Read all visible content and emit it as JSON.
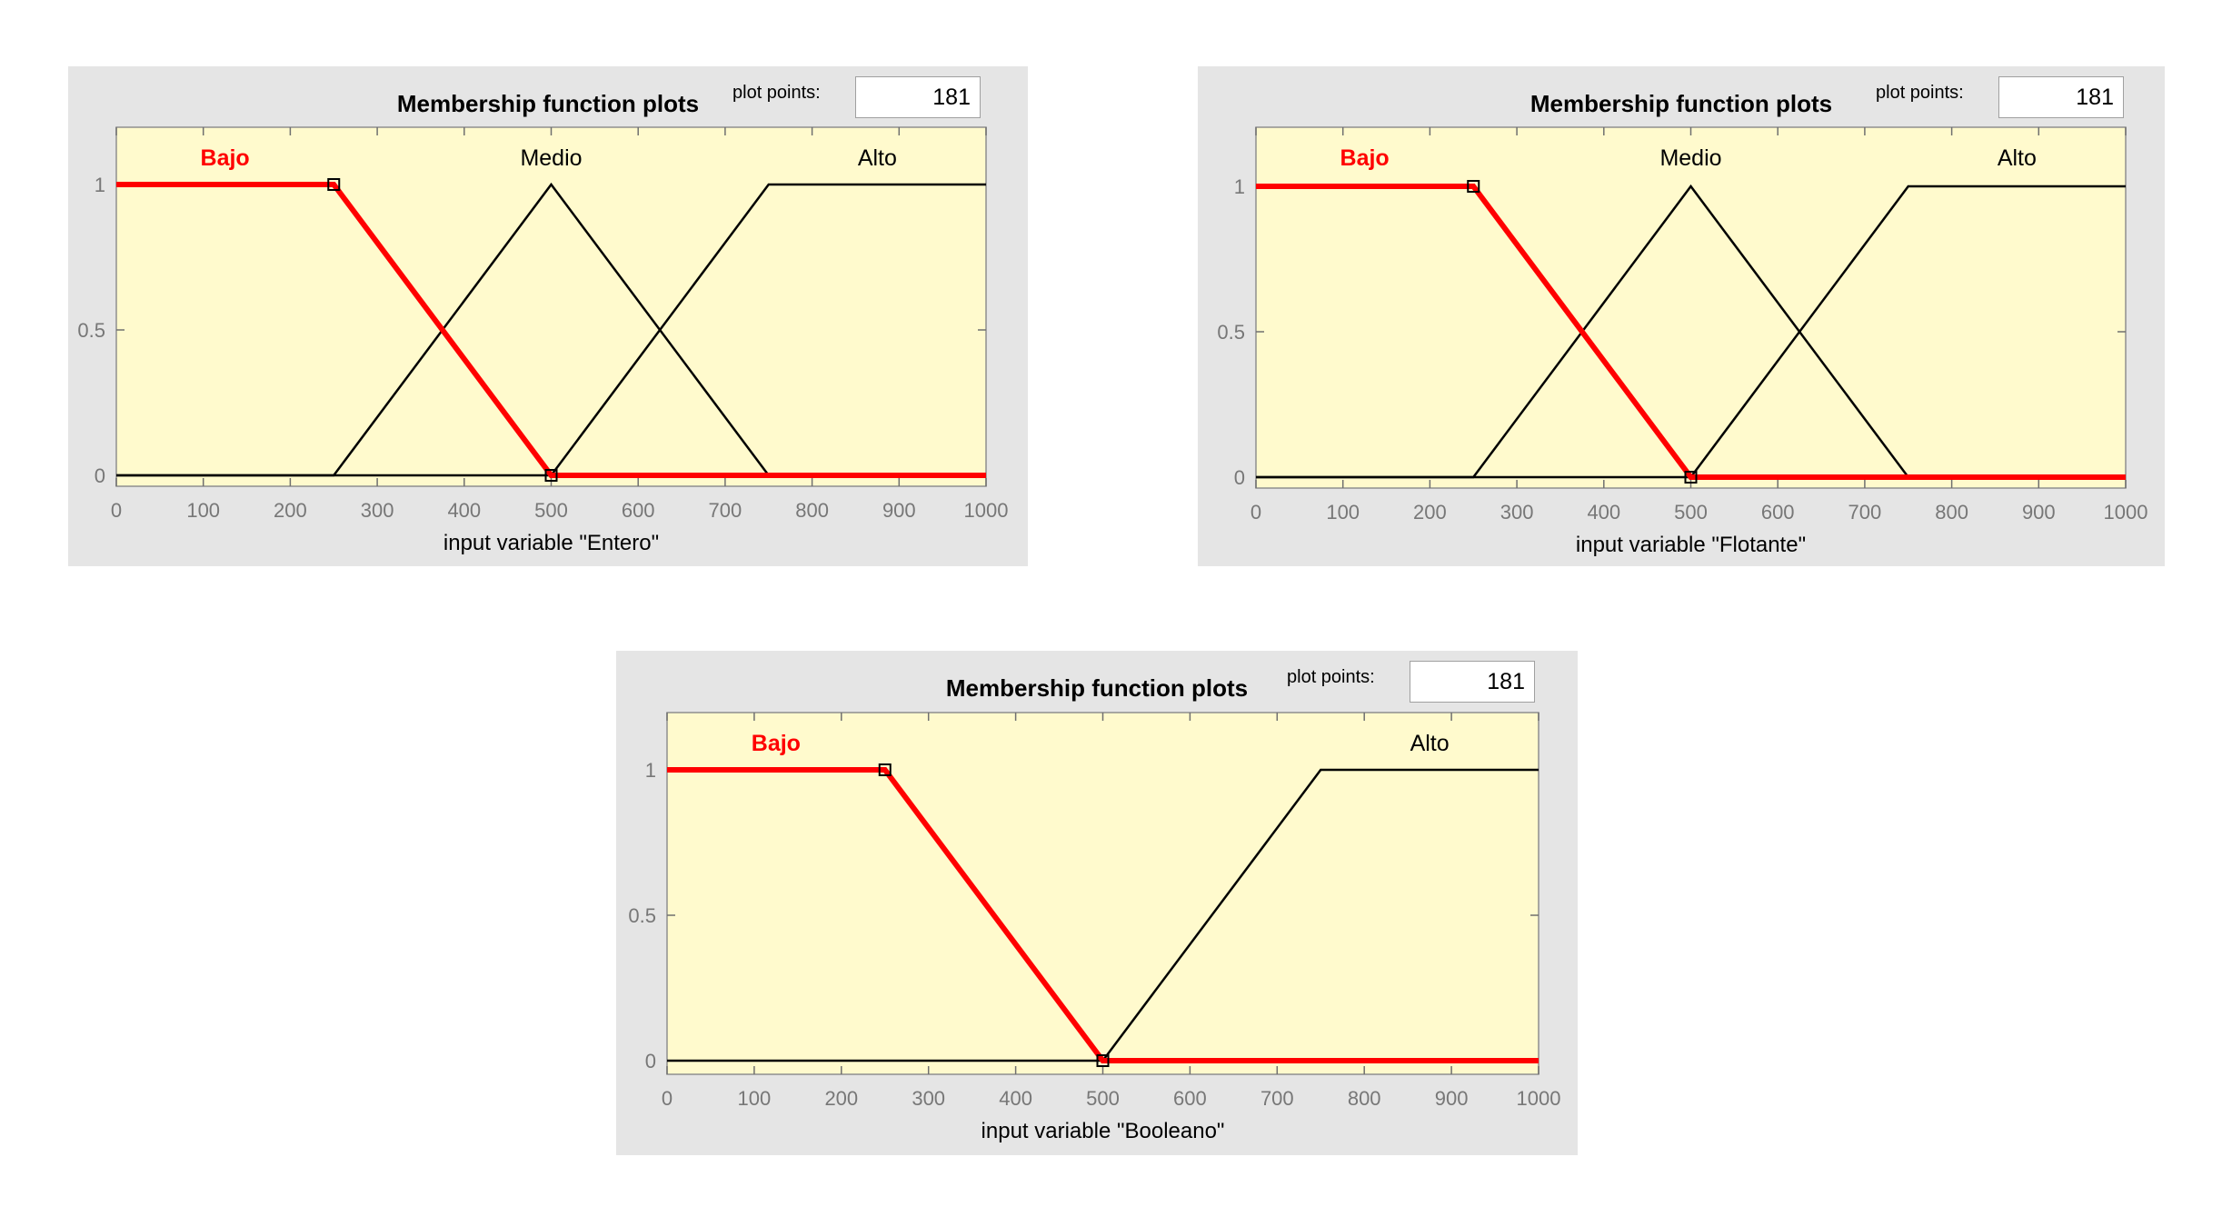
{
  "panels": [
    {
      "title": "Membership function plots",
      "plot_points_label": "plot points:",
      "plot_points_value": "181",
      "selected_index": 0,
      "chart_data": {
        "type": "line",
        "title": "Membership function plots",
        "xlabel": "input variable \"Entero\"",
        "ylabel": "",
        "xlim": [
          0,
          1000
        ],
        "ylim": [
          0,
          1
        ],
        "x_ticks": [
          "0",
          "100",
          "200",
          "300",
          "400",
          "500",
          "600",
          "700",
          "800",
          "900",
          "1000"
        ],
        "y_ticks": [
          "0",
          "0.5",
          "1"
        ],
        "series": [
          {
            "name": "Bajo",
            "x": [
              0,
              250,
              500,
              1000
            ],
            "y": [
              1,
              1,
              0,
              0
            ],
            "color": "#ff0000",
            "selected": true
          },
          {
            "name": "Medio",
            "x": [
              0,
              250,
              500,
              750,
              1000
            ],
            "y": [
              0,
              0,
              1,
              0,
              0
            ],
            "color": "#000000",
            "selected": false
          },
          {
            "name": "Alto",
            "x": [
              0,
              500,
              750,
              1000
            ],
            "y": [
              0,
              0,
              1,
              1
            ],
            "color": "#000000",
            "selected": false
          }
        ]
      }
    },
    {
      "title": "Membership function plots",
      "plot_points_label": "plot points:",
      "plot_points_value": "181",
      "selected_index": 0,
      "chart_data": {
        "type": "line",
        "title": "Membership function plots",
        "xlabel": "input variable \"Flotante\"",
        "ylabel": "",
        "xlim": [
          0,
          1000
        ],
        "ylim": [
          0,
          1
        ],
        "x_ticks": [
          "0",
          "100",
          "200",
          "300",
          "400",
          "500",
          "600",
          "700",
          "800",
          "900",
          "1000"
        ],
        "y_ticks": [
          "0",
          "0.5",
          "1"
        ],
        "series": [
          {
            "name": "Bajo",
            "x": [
              0,
              250,
              500,
              1000
            ],
            "y": [
              1,
              1,
              0,
              0
            ],
            "color": "#ff0000",
            "selected": true
          },
          {
            "name": "Medio",
            "x": [
              0,
              250,
              500,
              750,
              1000
            ],
            "y": [
              0,
              0,
              1,
              0,
              0
            ],
            "color": "#000000",
            "selected": false
          },
          {
            "name": "Alto",
            "x": [
              0,
              500,
              750,
              1000
            ],
            "y": [
              0,
              0,
              1,
              1
            ],
            "color": "#000000",
            "selected": false
          }
        ]
      }
    },
    {
      "title": "Membership function plots",
      "plot_points_label": "plot points:",
      "plot_points_value": "181",
      "selected_index": 0,
      "chart_data": {
        "type": "line",
        "title": "Membership function plots",
        "xlabel": "input variable \"Booleano\"",
        "ylabel": "",
        "xlim": [
          0,
          1000
        ],
        "ylim": [
          0,
          1
        ],
        "x_ticks": [
          "0",
          "100",
          "200",
          "300",
          "400",
          "500",
          "600",
          "700",
          "800",
          "900",
          "1000"
        ],
        "y_ticks": [
          "0",
          "0.5",
          "1"
        ],
        "series": [
          {
            "name": "Bajo",
            "x": [
              0,
              250,
              500,
              1000
            ],
            "y": [
              1,
              1,
              0,
              0
            ],
            "color": "#ff0000",
            "selected": true
          },
          {
            "name": "Alto",
            "x": [
              0,
              500,
              750,
              1000
            ],
            "y": [
              0,
              0,
              1,
              1
            ],
            "color": "#000000",
            "selected": false
          }
        ]
      }
    }
  ],
  "theme": {
    "axes_background": "#fffacd",
    "panel_background": "#e5e5e5",
    "selected_color": "#ff0000",
    "unselected_color": "#000000",
    "tick_color": "#777777"
  }
}
